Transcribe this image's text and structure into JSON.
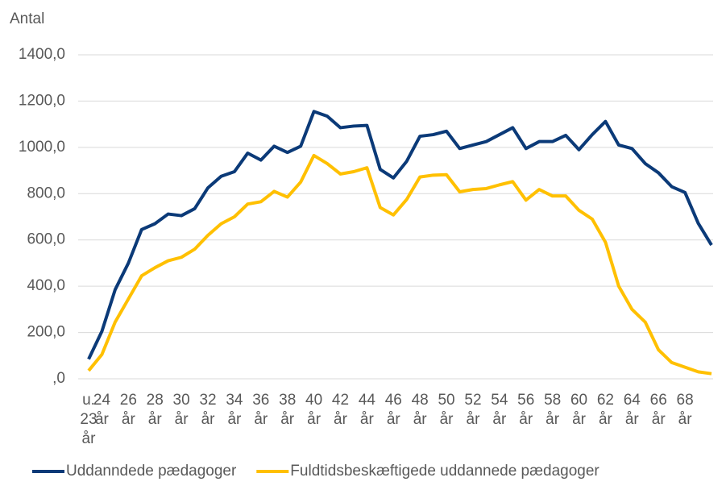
{
  "chart_data": {
    "type": "line",
    "y_label": "Antal",
    "categories": [
      "u. 23 år",
      "24 år",
      null,
      "26 år",
      null,
      "28 år",
      null,
      "30 år",
      null,
      "32 år",
      null,
      "34 år",
      null,
      "36 år",
      null,
      "38 år",
      null,
      "40 år",
      null,
      "42 år",
      null,
      "44 år",
      null,
      "46 år",
      null,
      "48 år",
      null,
      "50 år",
      null,
      "52 år",
      null,
      "54 år",
      null,
      "56 år",
      null,
      "58 år",
      null,
      "60 år",
      null,
      "62 år",
      null,
      "64 år",
      null,
      "66 år",
      null,
      "68 år",
      null,
      null
    ],
    "series": [
      {
        "name": "Uddanndede pædagoger",
        "color": "#0b3a78",
        "values": [
          85,
          205,
          385,
          500,
          645,
          670,
          712,
          705,
          735,
          825,
          875,
          895,
          975,
          945,
          1005,
          978,
          1005,
          1155,
          1135,
          1085,
          1092,
          1095,
          905,
          868,
          940,
          1048,
          1055,
          1070,
          995,
          1010,
          1025,
          1055,
          1085,
          995,
          1025,
          1025,
          1052,
          990,
          1055,
          1112,
          1010,
          995,
          930,
          890,
          830,
          805,
          672,
          578
        ]
      },
      {
        "name": "Fuldtidsbeskæftigede uddannede pædagoger",
        "color": "#ffc000",
        "values": [
          35,
          105,
          245,
          345,
          445,
          480,
          510,
          525,
          560,
          620,
          670,
          700,
          755,
          765,
          810,
          785,
          850,
          965,
          930,
          885,
          895,
          912,
          740,
          708,
          775,
          872,
          880,
          882,
          808,
          818,
          822,
          838,
          852,
          772,
          818,
          790,
          790,
          728,
          690,
          590,
          400,
          300,
          245,
          125,
          70,
          50,
          30,
          22
        ]
      }
    ],
    "ylim": [
      0,
      1400
    ],
    "yticks": [
      {
        "value": 0,
        "label": ",0"
      },
      {
        "value": 200,
        "label": "200,0"
      },
      {
        "value": 400,
        "label": "400,0"
      },
      {
        "value": 600,
        "label": "600,0"
      },
      {
        "value": 800,
        "label": "800,0"
      },
      {
        "value": 1000,
        "label": "1000,0"
      },
      {
        "value": 1200,
        "label": "1200,0"
      },
      {
        "value": 1400,
        "label": "1400,0"
      }
    ],
    "grid": true
  }
}
